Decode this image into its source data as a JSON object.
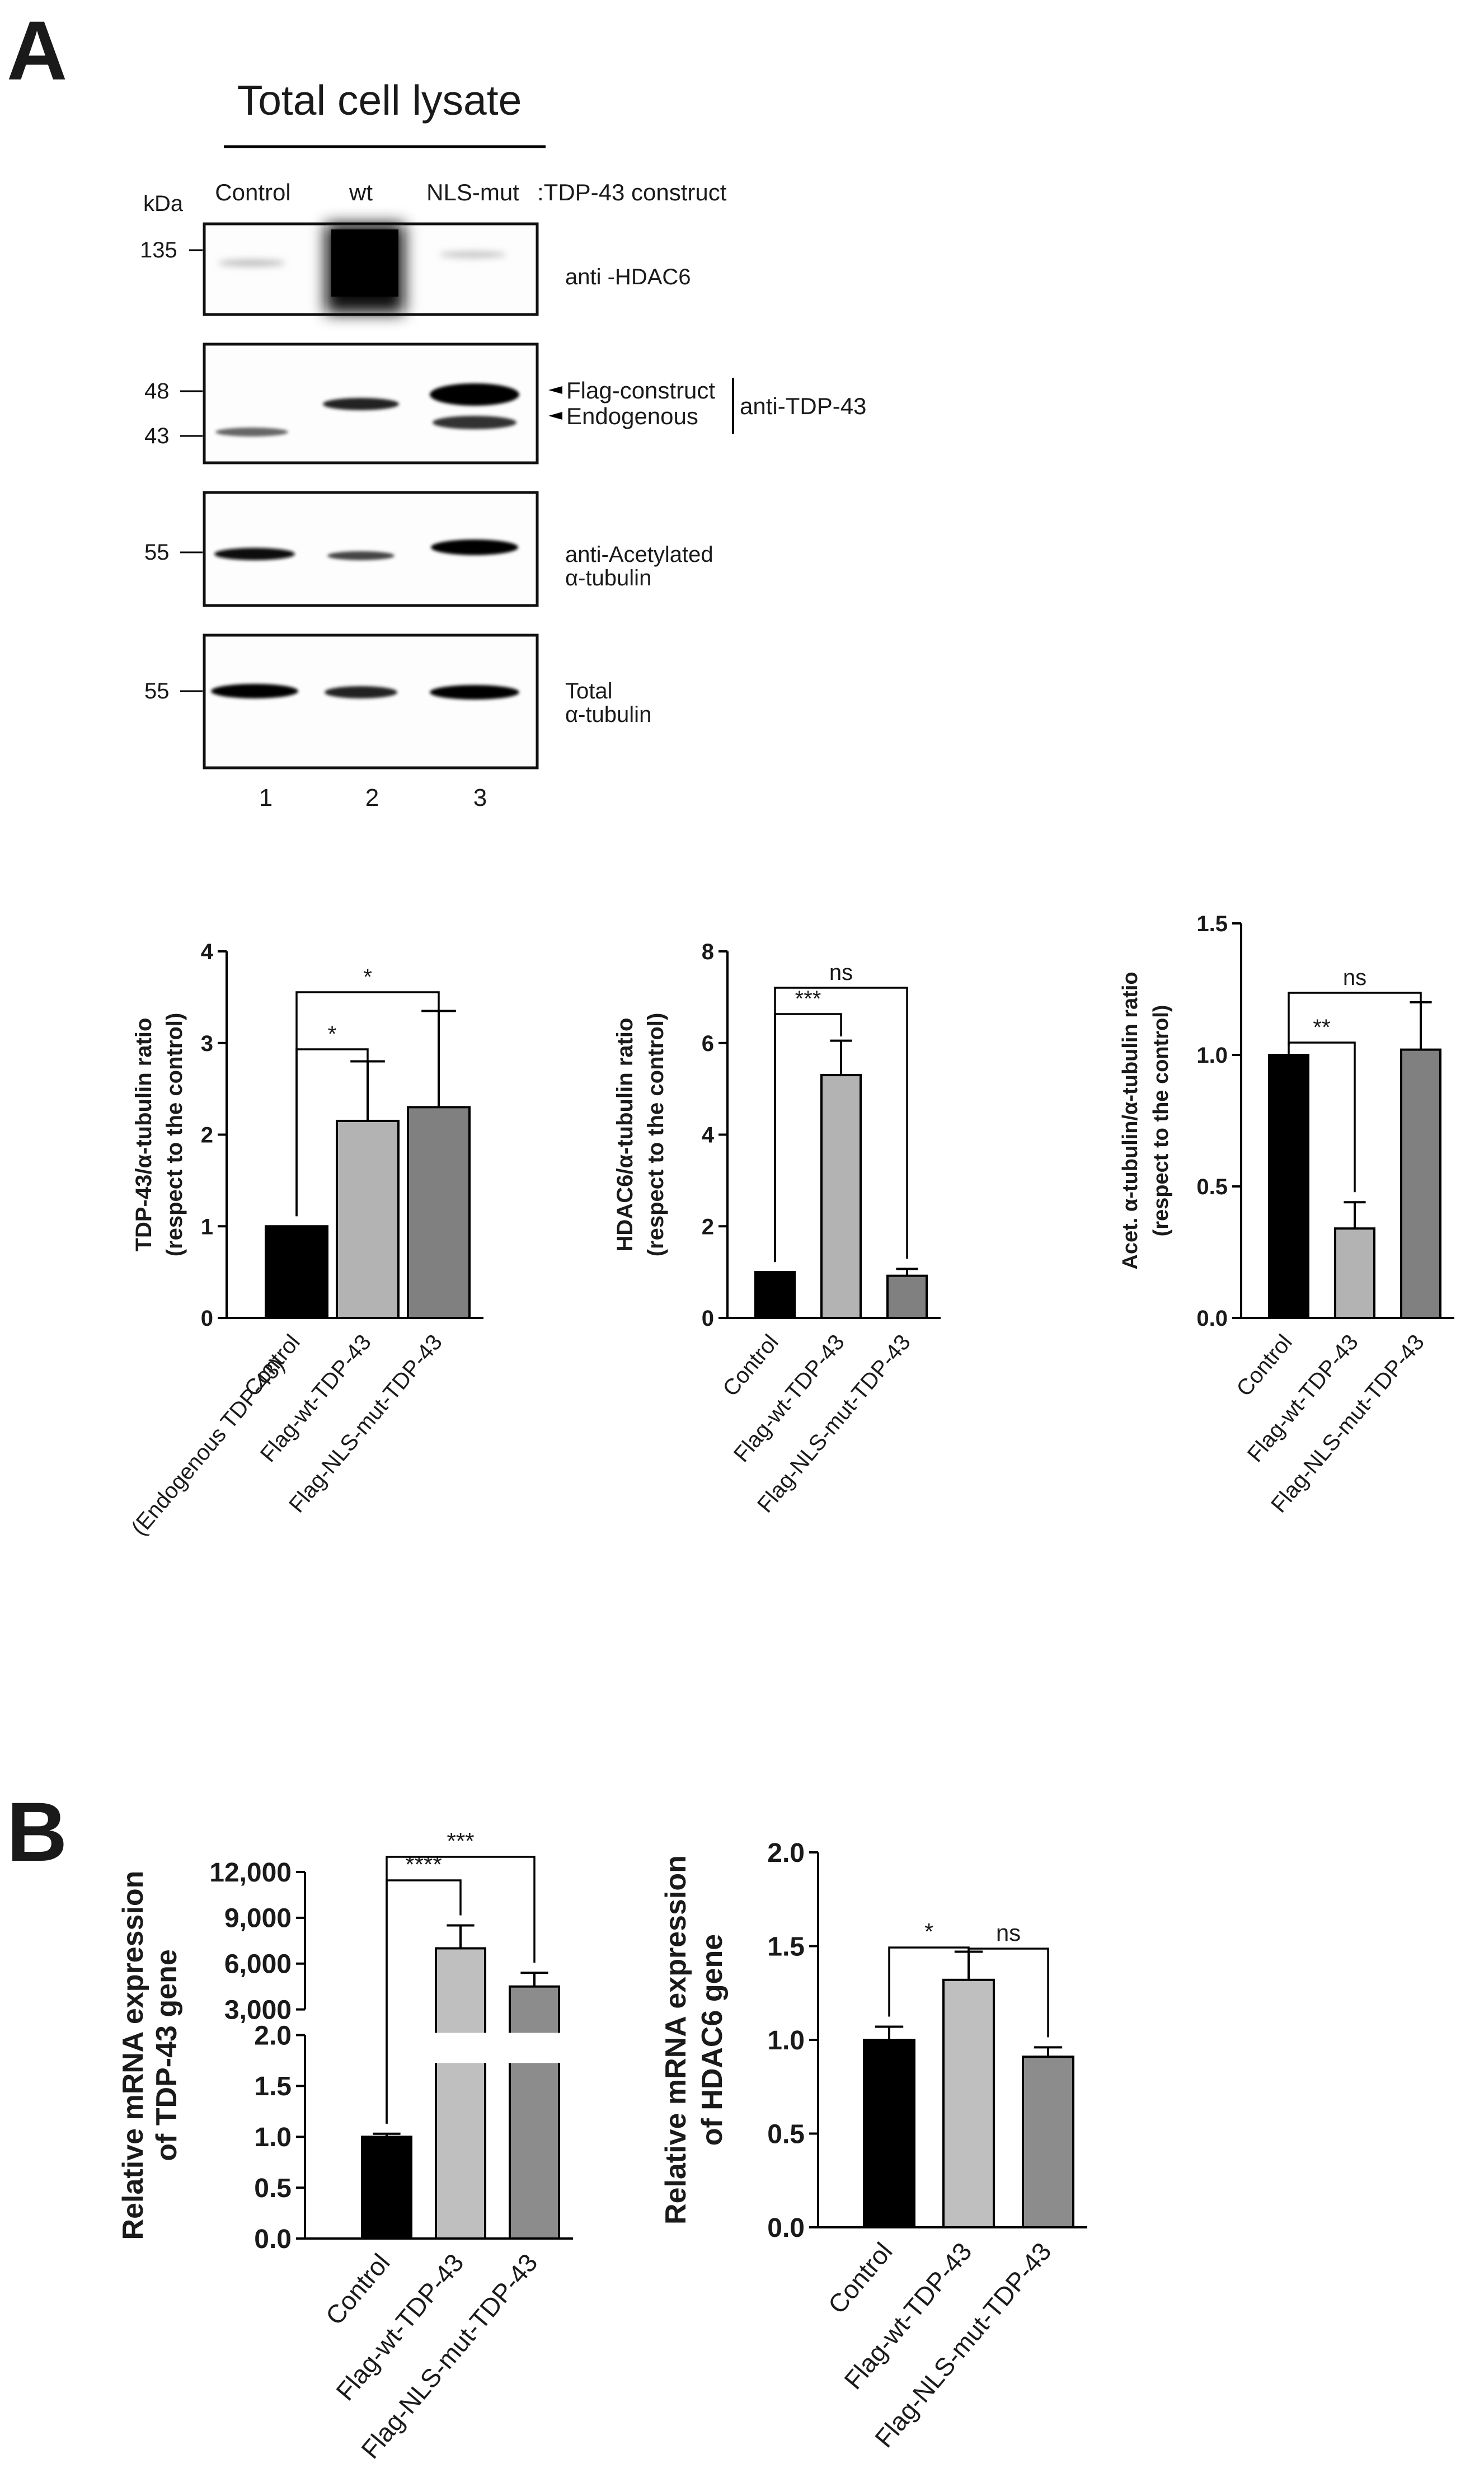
{
  "panel_a": {
    "letter": "A",
    "blot_title": "Total cell lysate",
    "kda_label": "kDa",
    "lanes": [
      "Control",
      "wt",
      "NLS-mut"
    ],
    "construct_label": ":TDP-43 construct",
    "lane_numbers": [
      "1",
      "2",
      "3"
    ],
    "blots": [
      {
        "markers": [
          "135"
        ],
        "labels": [
          "anti -HDAC6"
        ]
      },
      {
        "markers": [
          "48",
          "43"
        ],
        "arrows": [
          "Flag-construct",
          "Endogenous"
        ],
        "bracket_label": "anti-TDP-43"
      },
      {
        "markers": [
          "55"
        ],
        "labels": [
          "anti-Acetylated",
          "α-tubulin"
        ]
      },
      {
        "markers": [
          "55"
        ],
        "labels": [
          "Total",
          "α-tubulin"
        ]
      }
    ]
  },
  "panel_b": {
    "letter": "B"
  },
  "chart_data": [
    {
      "type": "bar",
      "categories": [
        "Control\n(Endogenous TDP-43)",
        "Flag-wt-TDP-43",
        "Flag-NLS-mut-TDP-43"
      ],
      "values": [
        1.0,
        2.15,
        2.3
      ],
      "errors": [
        0,
        0.65,
        1.05
      ],
      "colors": [
        "#000000",
        "#b3b3b3",
        "#808080"
      ],
      "ylabel": [
        "TDP-43/α-tubulin ratio",
        "(respect to the control)"
      ],
      "ylim": [
        0,
        4
      ],
      "yticks": [
        "0",
        "1",
        "2",
        "3",
        "4"
      ],
      "significance": [
        {
          "from": 0,
          "to": 1,
          "label": "*"
        },
        {
          "from": 0,
          "to": 2,
          "label": "*"
        }
      ]
    },
    {
      "type": "bar",
      "categories": [
        "Control",
        "Flag-wt-TDP-43",
        "Flag-NLS-mut-TDP-43"
      ],
      "values": [
        1.0,
        5.3,
        0.92
      ],
      "errors": [
        0,
        0.75,
        0.15
      ],
      "colors": [
        "#000000",
        "#b3b3b3",
        "#808080"
      ],
      "ylabel": [
        "HDAC6/α-tubulin ratio",
        "(respect to the control)"
      ],
      "ylim": [
        0,
        8
      ],
      "yticks": [
        "0",
        "2",
        "4",
        "6",
        "8"
      ],
      "significance": [
        {
          "from": 0,
          "to": 1,
          "label": "***"
        },
        {
          "from": 0,
          "to": 2,
          "label": "ns"
        }
      ]
    },
    {
      "type": "bar",
      "categories": [
        "Control",
        "Flag-wt-TDP-43",
        "Flag-NLS-mut-TDP-43"
      ],
      "values": [
        1.0,
        0.34,
        1.02
      ],
      "errors": [
        0,
        0.1,
        0.18
      ],
      "colors": [
        "#000000",
        "#b3b3b3",
        "#808080"
      ],
      "ylabel": [
        "Acet. α-tubulin/α-tubulin ratio",
        "(respect to the control)"
      ],
      "ylim": [
        0,
        1.5
      ],
      "yticks": [
        "0.0",
        "0.5",
        "1.0",
        "1.5"
      ],
      "significance": [
        {
          "from": 0,
          "to": 1,
          "label": "**"
        },
        {
          "from": 0,
          "to": 2,
          "label": "ns"
        }
      ]
    },
    {
      "type": "bar",
      "categories": [
        "Control",
        "Flag-wt-TDP-43",
        "Flag-NLS-mut-TDP-43"
      ],
      "values": [
        1.0,
        7000,
        4500
      ],
      "errors": [
        0.03,
        1500,
        900
      ],
      "colors": [
        "#000000",
        "#bfbfbf",
        "#8c8c8c"
      ],
      "ylabel": [
        "Relative mRNA expression",
        "of TDP-43 gene"
      ],
      "axis_break": {
        "lower": [
          0,
          2.0
        ],
        "upper": [
          3000,
          12000
        ]
      },
      "yticks_lower": [
        "0.0",
        "0.5",
        "1.0",
        "1.5",
        "2.0"
      ],
      "yticks_upper": [
        "3,000",
        "6,000",
        "9,000",
        "12,000"
      ],
      "significance": [
        {
          "from": 0,
          "to": 1,
          "label": "****"
        },
        {
          "from": 0,
          "to": 2,
          "label": "***"
        }
      ]
    },
    {
      "type": "bar",
      "categories": [
        "Control",
        "Flag-wt-TDP-43",
        "Flag-NLS-mut-TDP-43"
      ],
      "values": [
        1.0,
        1.32,
        0.91
      ],
      "errors": [
        0.07,
        0.15,
        0.05
      ],
      "colors": [
        "#000000",
        "#bfbfbf",
        "#8c8c8c"
      ],
      "ylabel": [
        "Relative mRNA expression",
        "of HDAC6 gene"
      ],
      "ylim": [
        0,
        2.0
      ],
      "yticks": [
        "0.0",
        "0.5",
        "1.0",
        "1.5",
        "2.0"
      ],
      "significance": [
        {
          "from": 0,
          "to": 1,
          "label": "*"
        },
        {
          "from": 1,
          "to": 2,
          "label": "ns"
        }
      ]
    }
  ]
}
